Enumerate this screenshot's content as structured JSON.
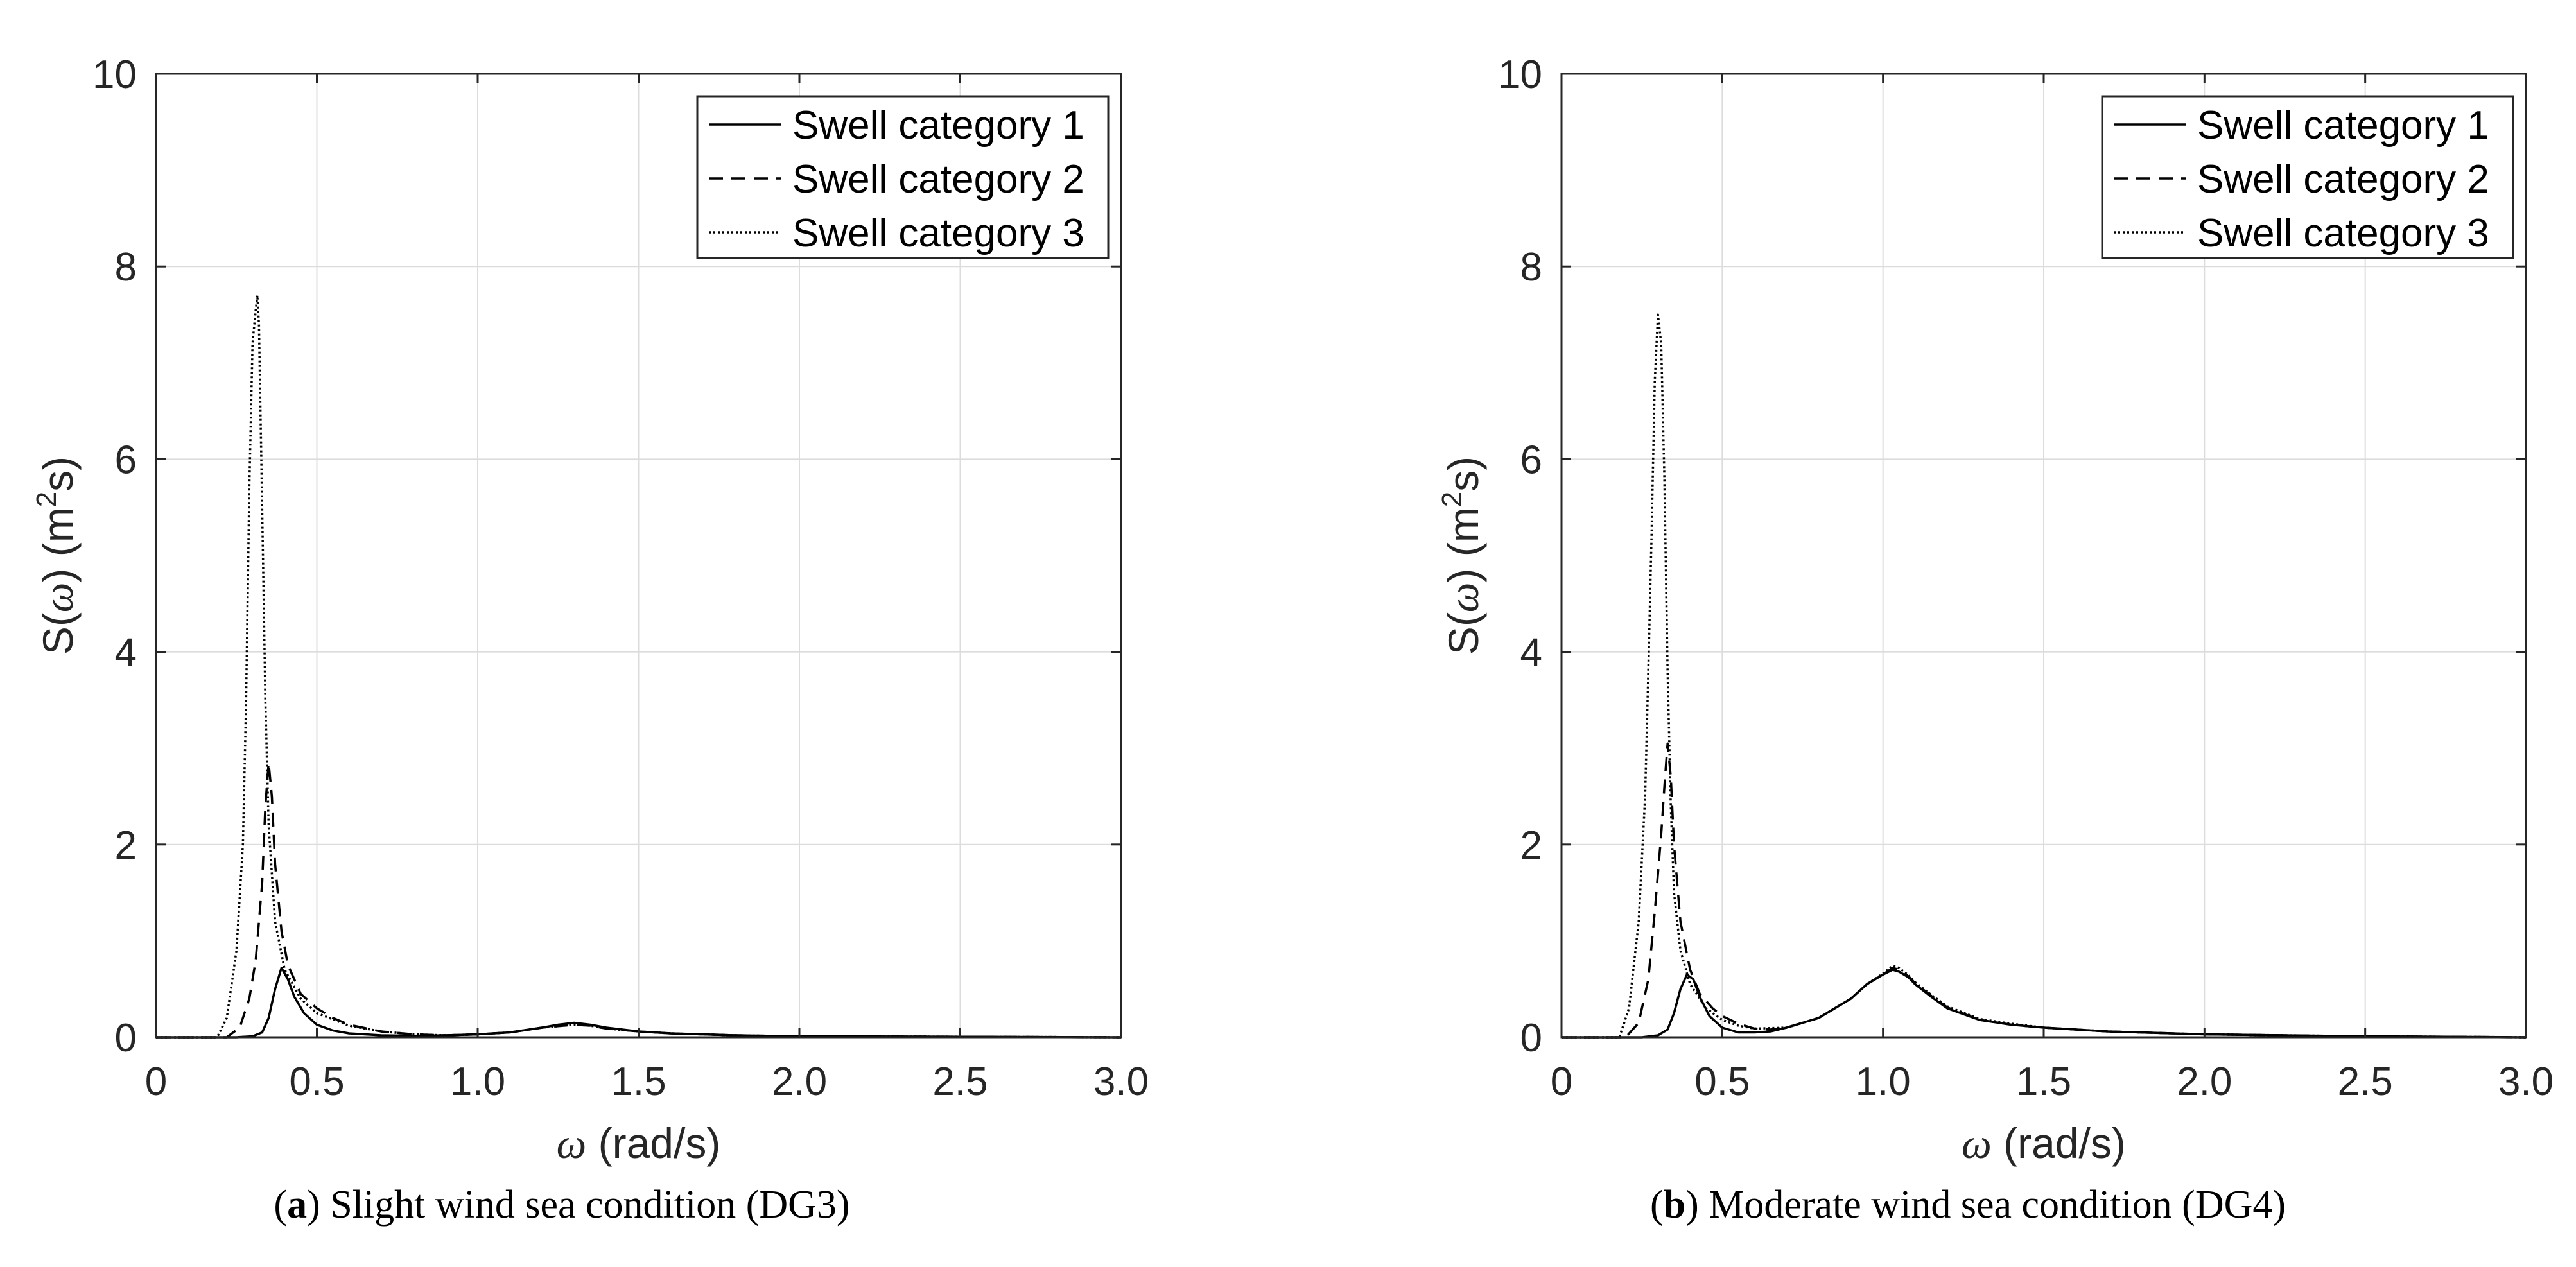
{
  "chart_data": [
    {
      "id": "a",
      "type": "line",
      "panel_label": "a",
      "caption": "Slight wind sea condition (DG3)",
      "xlabel_symbol": "ω",
      "xlabel_unit": "(rad/s)",
      "ylabel_prefix": "S(",
      "ylabel_symbol": "ω",
      "ylabel_mid": ") (m",
      "ylabel_sup": "2",
      "ylabel_suffix": "s)",
      "xlim": [
        0,
        3.0
      ],
      "ylim": [
        0,
        10
      ],
      "xticks": [
        0,
        0.5,
        1.0,
        1.5,
        2.0,
        2.5,
        3.0
      ],
      "xtick_labels": [
        "0",
        "0.5",
        "1.0",
        "1.5",
        "2.0",
        "2.5",
        "3.0"
      ],
      "yticks": [
        0,
        2,
        4,
        6,
        8,
        10
      ],
      "ytick_labels": [
        "0",
        "2",
        "4",
        "6",
        "8",
        "10"
      ],
      "grid": true,
      "legend_position": "top-right",
      "series": [
        {
          "name": "Swell category 1",
          "style": "solid",
          "x": [
            0,
            0.25,
            0.3,
            0.33,
            0.35,
            0.37,
            0.39,
            0.41,
            0.43,
            0.46,
            0.5,
            0.55,
            0.6,
            0.7,
            0.8,
            0.9,
            1.0,
            1.1,
            1.2,
            1.25,
            1.3,
            1.35,
            1.4,
            1.5,
            1.6,
            1.8,
            2.0,
            2.5,
            3.0
          ],
          "y": [
            0,
            0,
            0.01,
            0.05,
            0.2,
            0.5,
            0.72,
            0.6,
            0.42,
            0.25,
            0.13,
            0.07,
            0.04,
            0.02,
            0.015,
            0.02,
            0.03,
            0.05,
            0.1,
            0.13,
            0.15,
            0.13,
            0.1,
            0.06,
            0.04,
            0.02,
            0.01,
            0.005,
            0
          ]
        },
        {
          "name": "Swell category 2",
          "style": "dashed",
          "x": [
            0,
            0.22,
            0.26,
            0.29,
            0.31,
            0.33,
            0.34,
            0.35,
            0.36,
            0.37,
            0.39,
            0.41,
            0.45,
            0.5,
            0.55,
            0.6,
            0.7,
            0.8,
            0.9,
            1.0,
            1.1,
            1.2,
            1.3,
            1.35,
            1.4,
            1.5,
            1.6,
            1.8,
            2.0,
            2.5,
            3.0
          ],
          "y": [
            0,
            0,
            0.1,
            0.4,
            0.8,
            1.6,
            2.4,
            2.85,
            2.5,
            1.8,
            1.1,
            0.75,
            0.45,
            0.3,
            0.2,
            0.13,
            0.06,
            0.03,
            0.02,
            0.03,
            0.05,
            0.1,
            0.13,
            0.12,
            0.09,
            0.06,
            0.04,
            0.02,
            0.01,
            0.005,
            0
          ]
        },
        {
          "name": "Swell category 3",
          "style": "dotted",
          "x": [
            0,
            0.19,
            0.22,
            0.25,
            0.27,
            0.28,
            0.29,
            0.3,
            0.31,
            0.315,
            0.32,
            0.33,
            0.34,
            0.35,
            0.37,
            0.4,
            0.45,
            0.5,
            0.6,
            0.7,
            0.8,
            0.9,
            1.0,
            1.1,
            1.2,
            1.3,
            1.35,
            1.4,
            1.5,
            1.6,
            1.8,
            2.0,
            2.5,
            3.0
          ],
          "y": [
            0,
            0,
            0.2,
            0.9,
            2.0,
            3.5,
            5.7,
            7.2,
            7.55,
            7.7,
            7.4,
            5.5,
            3.5,
            2.2,
            1.2,
            0.7,
            0.4,
            0.25,
            0.12,
            0.06,
            0.03,
            0.02,
            0.03,
            0.05,
            0.1,
            0.13,
            0.12,
            0.09,
            0.06,
            0.04,
            0.02,
            0.01,
            0.005,
            0
          ]
        }
      ]
    },
    {
      "id": "b",
      "type": "line",
      "panel_label": "b",
      "caption": "Moderate wind sea condition (DG4)",
      "xlabel_symbol": "ω",
      "xlabel_unit": "(rad/s)",
      "ylabel_prefix": "S(",
      "ylabel_symbol": "ω",
      "ylabel_mid": ") (m",
      "ylabel_sup": "2",
      "ylabel_suffix": "s)",
      "xlim": [
        0,
        3.0
      ],
      "ylim": [
        0,
        10
      ],
      "xticks": [
        0,
        0.5,
        1.0,
        1.5,
        2.0,
        2.5,
        3.0
      ],
      "xtick_labels": [
        "0",
        "0.5",
        "1.0",
        "1.5",
        "2.0",
        "2.5",
        "3.0"
      ],
      "yticks": [
        0,
        2,
        4,
        6,
        8,
        10
      ],
      "ytick_labels": [
        "0",
        "2",
        "4",
        "6",
        "8",
        "10"
      ],
      "grid": true,
      "legend_position": "top-right",
      "series": [
        {
          "name": "Swell category 1",
          "style": "solid",
          "x": [
            0,
            0.25,
            0.3,
            0.33,
            0.35,
            0.37,
            0.39,
            0.41,
            0.43,
            0.46,
            0.5,
            0.55,
            0.6,
            0.65,
            0.7,
            0.8,
            0.9,
            0.95,
            1.0,
            1.03,
            1.05,
            1.08,
            1.1,
            1.15,
            1.2,
            1.3,
            1.4,
            1.5,
            1.7,
            2.0,
            2.5,
            3.0
          ],
          "y": [
            0,
            0,
            0.02,
            0.08,
            0.25,
            0.5,
            0.65,
            0.6,
            0.42,
            0.22,
            0.1,
            0.05,
            0.05,
            0.06,
            0.1,
            0.2,
            0.4,
            0.55,
            0.65,
            0.7,
            0.68,
            0.62,
            0.55,
            0.42,
            0.3,
            0.18,
            0.13,
            0.1,
            0.06,
            0.03,
            0.01,
            0
          ]
        },
        {
          "name": "Swell category 2",
          "style": "dashed",
          "x": [
            0,
            0.2,
            0.24,
            0.27,
            0.29,
            0.31,
            0.32,
            0.33,
            0.34,
            0.35,
            0.37,
            0.4,
            0.43,
            0.47,
            0.5,
            0.55,
            0.6,
            0.65,
            0.7,
            0.8,
            0.9,
            0.95,
            1.0,
            1.03,
            1.05,
            1.08,
            1.1,
            1.15,
            1.2,
            1.3,
            1.4,
            1.5,
            1.7,
            2.0,
            2.5,
            3.0
          ],
          "y": [
            0,
            0,
            0.15,
            0.6,
            1.3,
            2.1,
            2.6,
            3.05,
            2.7,
            2.0,
            1.2,
            0.7,
            0.45,
            0.3,
            0.22,
            0.14,
            0.09,
            0.08,
            0.1,
            0.2,
            0.4,
            0.55,
            0.65,
            0.72,
            0.7,
            0.63,
            0.56,
            0.43,
            0.31,
            0.18,
            0.13,
            0.1,
            0.06,
            0.03,
            0.01,
            0
          ]
        },
        {
          "name": "Swell category 3",
          "style": "dotted",
          "x": [
            0,
            0.18,
            0.21,
            0.24,
            0.26,
            0.27,
            0.28,
            0.29,
            0.3,
            0.31,
            0.32,
            0.33,
            0.34,
            0.35,
            0.37,
            0.4,
            0.45,
            0.5,
            0.55,
            0.6,
            0.7,
            0.8,
            0.9,
            0.95,
            1.0,
            1.03,
            1.05,
            1.08,
            1.1,
            1.15,
            1.2,
            1.3,
            1.4,
            1.5,
            1.7,
            2.0,
            2.5,
            3.0
          ],
          "y": [
            0,
            0,
            0.3,
            1.2,
            2.5,
            3.8,
            5.2,
            6.8,
            7.5,
            7.2,
            5.8,
            3.8,
            2.4,
            1.5,
            0.9,
            0.55,
            0.3,
            0.18,
            0.12,
            0.09,
            0.1,
            0.2,
            0.4,
            0.55,
            0.66,
            0.74,
            0.72,
            0.64,
            0.57,
            0.44,
            0.32,
            0.19,
            0.14,
            0.1,
            0.06,
            0.03,
            0.01,
            0
          ]
        }
      ]
    }
  ]
}
